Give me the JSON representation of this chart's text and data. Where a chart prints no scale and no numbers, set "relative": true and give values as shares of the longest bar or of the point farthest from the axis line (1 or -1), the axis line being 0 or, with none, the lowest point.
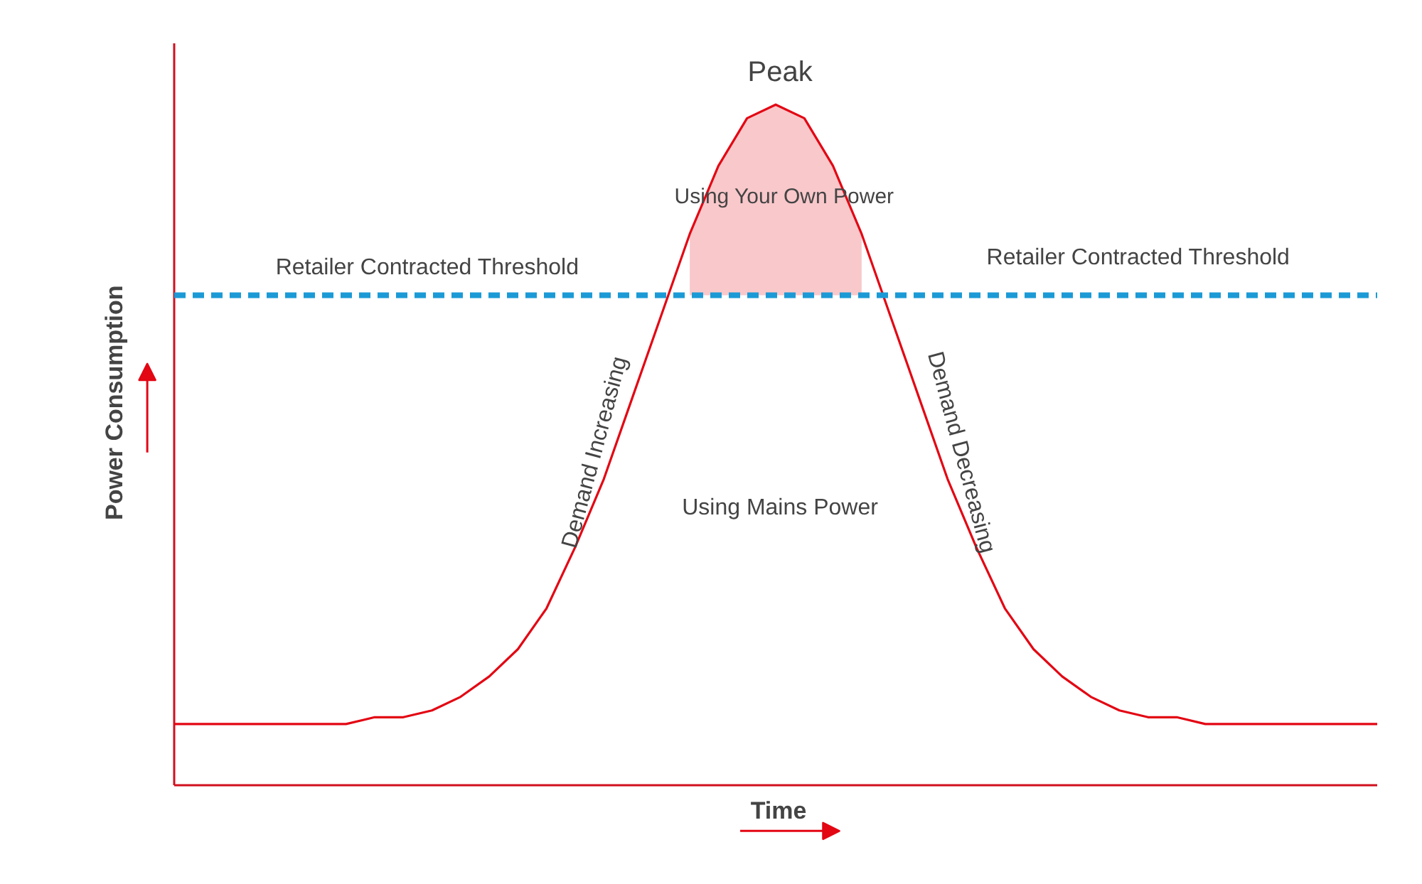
{
  "chart_data": {
    "type": "line",
    "relative": true,
    "xlabel": "Time",
    "ylabel": "Power Consumption",
    "categories": [
      null,
      null,
      null,
      null,
      null,
      null,
      null,
      null,
      null,
      null,
      null,
      null,
      null,
      null,
      null,
      null,
      null,
      null,
      null,
      null,
      null,
      null,
      null,
      null,
      null,
      null,
      null,
      null,
      null,
      null,
      null,
      null,
      null,
      null,
      null,
      null,
      null,
      null,
      null,
      null,
      null,
      null,
      null
    ],
    "series": [
      {
        "color": "#e30613",
        "values": [
          0.09,
          0.09,
          0.09,
          0.09,
          0.09,
          0.09,
          0.09,
          0.1,
          0.1,
          0.11,
          0.13,
          0.16,
          0.2,
          0.26,
          0.35,
          0.45,
          0.57,
          0.69,
          0.81,
          0.91,
          0.98,
          1,
          0.98,
          0.91,
          0.81,
          0.69,
          0.57,
          0.45,
          0.35,
          0.26,
          0.2,
          0.16,
          0.13,
          0.11,
          0.1,
          0.1,
          0.09,
          0.09,
          0.09,
          0.09,
          0.09,
          0.09,
          0.09
        ],
        "lower": [
          null,
          null,
          null,
          null,
          null,
          null,
          null,
          null,
          null,
          null,
          null,
          null,
          null,
          null,
          null,
          null,
          null,
          null,
          0.72,
          0.72,
          0.72,
          0.72,
          0.72,
          0.72,
          0.72,
          null,
          null,
          null,
          null,
          null,
          null,
          null,
          null,
          null,
          null,
          null,
          null,
          null,
          null,
          null,
          null,
          null,
          null
        ],
        "upper": [
          null,
          null,
          null,
          null,
          null,
          null,
          null,
          null,
          null,
          null,
          null,
          null,
          null,
          null,
          null,
          null,
          null,
          null,
          0.81,
          0.91,
          0.98,
          1,
          0.98,
          0.91,
          0.81,
          null,
          null,
          null,
          null,
          null,
          null,
          null,
          null,
          null,
          null,
          null,
          null,
          null,
          null,
          null,
          null,
          null,
          null
        ]
      }
    ],
    "ref_lines": [
      {
        "axis": "y",
        "value": 0.72,
        "label": "Retailer Contracted Threshold",
        "color": "#1b9ad6",
        "line_style": "dashed"
      }
    ],
    "annotations": [
      "Retailer Contracted Threshold",
      "Peak",
      "Using Your Own Power",
      "Using Mains Power",
      "Demand Increasing",
      "Demand Decreasing"
    ]
  }
}
